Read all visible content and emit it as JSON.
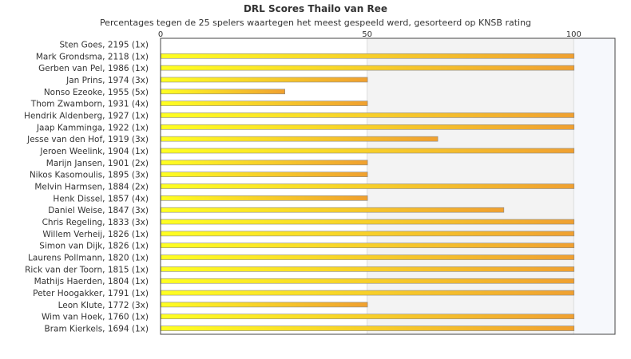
{
  "chart_data": {
    "type": "bar",
    "orientation": "horizontal",
    "title": "DRL Scores Thailo van Ree",
    "subtitle": "Percentages tegen de 25 spelers waartegen het meest gespeeld werd, gesorteerd op KNSB rating",
    "categories": [
      "Sten Goes, 2195 (1x)",
      "Mark Grondsma, 2118 (1x)",
      "Gerben van Pel, 1986 (1x)",
      "Jan Prins, 1974 (3x)",
      "Nonso Ezeoke, 1955 (5x)",
      "Thom Zwamborn, 1931 (4x)",
      "Hendrik Aldenberg, 1927 (1x)",
      "Jaap Kamminga, 1922 (1x)",
      "Jesse van den Hof, 1919 (3x)",
      "Jeroen Weelink, 1904 (1x)",
      "Marijn Jansen, 1901 (2x)",
      "Nikos Kasomoulis, 1895 (3x)",
      "Melvin Harmsen, 1884 (2x)",
      "Henk Dissel, 1857 (4x)",
      "Daniel Weise, 1847 (3x)",
      "Chris Regeling, 1833 (3x)",
      "Willem Verheij, 1826 (1x)",
      "Simon van Dijk, 1826 (1x)",
      "Laurens Pollmann, 1820 (1x)",
      "Rick van der Toorn, 1815 (1x)",
      "Mathijs Haerden, 1804 (1x)",
      "Peter Hoogakker, 1791 (1x)",
      "Leon Klute, 1772 (3x)",
      "Wim van Hoek, 1760 (1x)",
      "Bram Kierkels, 1694 (1x)"
    ],
    "values": [
      0,
      100,
      100,
      50,
      30,
      50,
      100,
      100,
      67,
      100,
      50,
      50,
      100,
      50,
      83,
      100,
      100,
      100,
      100,
      100,
      100,
      100,
      50,
      100,
      100
    ],
    "xlim": [
      0,
      110
    ],
    "x_ticks": [
      0,
      50,
      100
    ],
    "bar_gradient": [
      "#ffff22",
      "#f0a030"
    ],
    "bar_border": "#888888",
    "band_color": "#f3f3f3"
  }
}
